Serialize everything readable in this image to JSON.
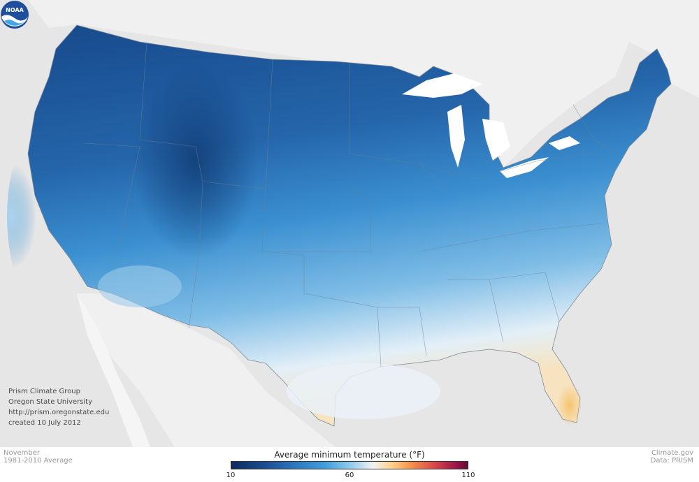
{
  "map": {
    "colors": {
      "background": "#e6e6e6",
      "land_other": "#f2f2f2",
      "water": "#ffffff",
      "cold_deep": "#174a8c",
      "cold": "#2e78c0",
      "mid_blue": "#3f98d6",
      "light_blue": "#a9d3ef",
      "neutral": "#eef4f8",
      "warm": "#f6cf86"
    }
  },
  "credits": {
    "line1": "Prism Climate Group",
    "line2": "Oregon State University",
    "line3": "http://prism.oregonstate.edu",
    "line4": "created 10 July 2012"
  },
  "footer": {
    "month": "November",
    "period": "1981-2010 Average",
    "source1": "Climate.gov",
    "source2": "Data: PRISM"
  },
  "legend": {
    "title": "Average minimum temperature (°F)",
    "ticks": [
      "10",
      "60",
      "110"
    ],
    "tick_values": [
      10,
      60,
      110
    ],
    "range": [
      10,
      110
    ]
  },
  "logo": {
    "label": "NOAA",
    "icon": "noaa-logo-icon"
  }
}
